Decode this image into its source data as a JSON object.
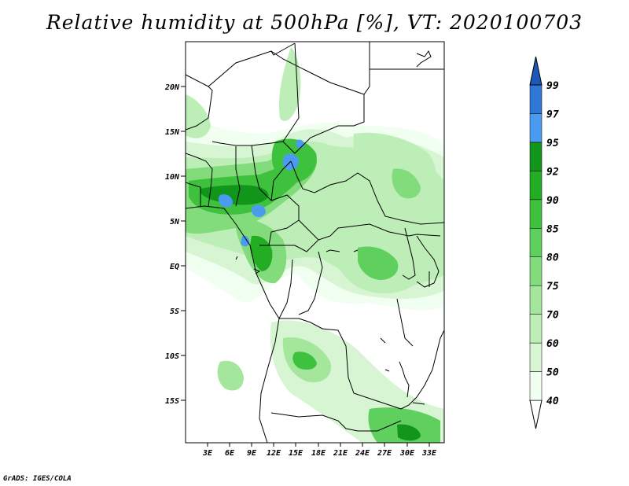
{
  "title": "Relative humidity at 500hPa [%], VT: 2020100703",
  "credit": "GrADS: IGES/COLA",
  "map": {
    "lon_labels": [
      "3E",
      "6E",
      "9E",
      "12E",
      "15E",
      "18E",
      "21E",
      "24E",
      "27E",
      "30E",
      "33E"
    ],
    "lat_labels": [
      "20N",
      "15N",
      "10N",
      "5N",
      "EQ",
      "5S",
      "10S",
      "15S"
    ]
  },
  "colorbar": {
    "labels": [
      "40",
      "50",
      "60",
      "70",
      "75",
      "80",
      "85",
      "90",
      "92",
      "95",
      "97",
      "99"
    ],
    "colors": [
      "#f0fff0",
      "#d7f5d3",
      "#bdeeb7",
      "#a3e69c",
      "#82dc7c",
      "#5fd05e",
      "#3ec23d",
      "#22ad22",
      "#11961b",
      "#4b9cf0",
      "#2f78d8",
      "#1b58b8"
    ]
  },
  "fill_colors": {
    "land": "#ffffff",
    "lake": "#4b9cf0"
  }
}
